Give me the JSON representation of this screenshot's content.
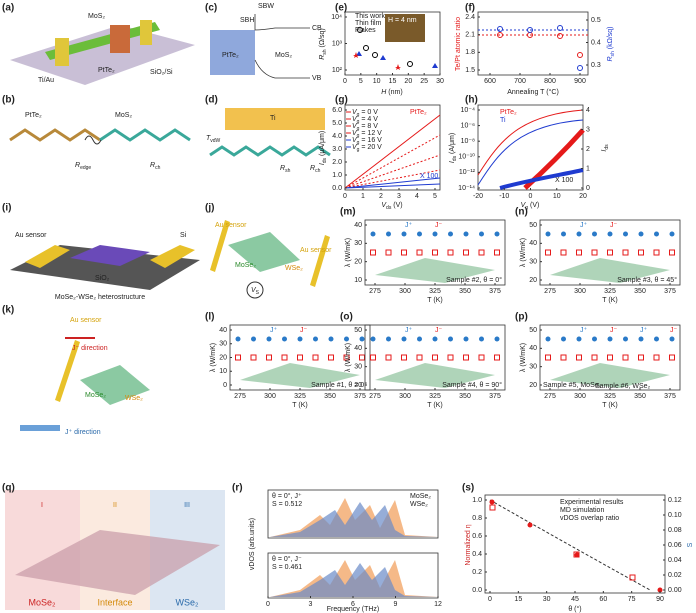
{
  "panels": {
    "a": {
      "label": "(a)",
      "mos2": "MoS₂",
      "tiau": "Ti/Au",
      "ptte2": "PtTe₂",
      "sub": "SiO₂/Si"
    },
    "b": {
      "label": "(b)",
      "ptte2": "PtTe₂",
      "mos2": "MoS₂",
      "redge": [
        "R",
        "edge"
      ],
      "rch": [
        "R",
        "ch"
      ]
    },
    "c": {
      "label": "(c)",
      "sbh": "SBH",
      "sbw": "SBW",
      "cb": "CB",
      "vb": "VB",
      "ptte2": "PtTe₂",
      "mos2": "MoS₂"
    },
    "d": {
      "label": "(d)",
      "ti": "Ti",
      "tvdw": [
        "T",
        "vdW"
      ],
      "rsh": [
        "R",
        "sh"
      ],
      "rch": [
        "R",
        "ch"
      ]
    },
    "e": {
      "label": "(e)",
      "ylabel": [
        "R",
        "sh",
        " (Ω/sq)"
      ],
      "xlabel": [
        "H",
        "",
        " (nm)"
      ],
      "yticks": [
        "10²",
        "10³",
        "10⁴"
      ],
      "xticks": [
        0,
        5,
        10,
        15,
        20,
        25,
        30
      ],
      "legend": [
        "This work",
        "Thin film",
        "Flakes"
      ],
      "inset": "H = 4 nm"
    },
    "f": {
      "label": "(f)",
      "ylabel": "Te/Pt atomic ratio",
      "y2label": [
        "R",
        "sh",
        " (kΩ/sq)"
      ],
      "xlabel": "Annealing T (°C)",
      "yticks": [
        1.5,
        1.8,
        2.1,
        2.4
      ],
      "y2ticks": [
        0.3,
        0.4,
        0.5
      ],
      "xticks": [
        600,
        700,
        800,
        900
      ]
    },
    "g": {
      "label": "(g)",
      "ylabel": [
        "I",
        "ds",
        " (μA/μm)"
      ],
      "xlabel": [
        "V",
        "ds",
        " (V)"
      ],
      "yticks": [
        "0.0",
        "1.0",
        "2.0",
        "3.0",
        "4.0",
        "5.0",
        "6.0"
      ],
      "xticks": [
        0,
        1,
        2,
        3,
        4,
        5
      ],
      "legend": [
        [
          "V",
          "g",
          " = 0 V"
        ],
        [
          "V",
          "g",
          " = 4 V"
        ],
        [
          "V",
          "g",
          " = 8 V"
        ],
        [
          "V",
          "g",
          " = 12 V"
        ],
        [
          "V",
          "g",
          " = 16 V"
        ],
        [
          "V",
          "g",
          " = 20 V"
        ]
      ],
      "ptte2": "PtTe₂",
      "x100": "X 100"
    },
    "h": {
      "label": "(h)",
      "ylabel": [
        "I",
        "ds",
        " (A/μm)"
      ],
      "y2label": [
        "I",
        "ds"
      ],
      "xlabel": [
        "V",
        "g",
        " (V)"
      ],
      "yticks": [
        "10⁻¹⁴",
        "10⁻¹²",
        "10⁻¹⁰",
        "10⁻⁸",
        "10⁻⁶",
        "10⁻⁴"
      ],
      "y2ticks": [
        0,
        1,
        2,
        3,
        4
      ],
      "xticks": [
        -20,
        -10,
        0,
        10,
        20
      ],
      "legend": [
        "PtTe₂",
        "Ti"
      ],
      "x100": "X 100"
    },
    "i": {
      "label": "(i)",
      "au": "Au sensor",
      "si": "Si",
      "sio2": "SiO₂",
      "hetero": "MoSe₂-WSe₂ heterostructure"
    },
    "j": {
      "label": "(j)",
      "au1": "Au sensor",
      "au2": "Au sensor",
      "mose2": "MoSe₂",
      "wse2": "WSe₂",
      "vs": [
        "V",
        "S"
      ]
    },
    "k": {
      "label": "(k)",
      "au": "Au sensor",
      "jminus": "J⁻ direction",
      "mose2": "MoSe₂",
      "wse2": "WSe₂",
      "jplus": "J⁺ direction"
    },
    "m": {
      "label": "(m)",
      "ylabel": "λ (W/mK)",
      "xlabel": "T (K)",
      "yticks": [
        10,
        20,
        30,
        40
      ],
      "xticks": [
        275,
        300,
        325,
        350,
        375
      ],
      "legend": [
        "J⁺",
        "J⁻"
      ],
      "sample": "Sample #2, θ = 0°"
    },
    "n": {
      "label": "(n)",
      "ylabel": "λ (W/mK)",
      "xlabel": "T (K)",
      "yticks": [
        20,
        30,
        40,
        50
      ],
      "xticks": [
        275,
        300,
        325,
        350,
        375
      ],
      "legend": [
        "J⁺",
        "J⁻"
      ],
      "sample": "Sample #3, θ = 45°"
    },
    "l": {
      "label": "(l)",
      "ylabel": "λ (W/mK)",
      "xlabel": "T (K)",
      "yticks": [
        0,
        10,
        20,
        30,
        40
      ],
      "xticks": [
        275,
        300,
        325,
        350,
        375
      ],
      "legend": [
        "J⁺",
        "J⁻"
      ],
      "sample": "Sample #1, θ = 0°"
    },
    "o": {
      "label": "(o)",
      "ylabel": "λ (W/mK)",
      "xlabel": "T (K)",
      "yticks": [
        20,
        30,
        40,
        50
      ],
      "xticks": [
        275,
        300,
        325,
        350,
        375
      ],
      "legend": [
        "J⁺",
        "J⁻"
      ],
      "sample": "Sample #4, θ = 90°"
    },
    "p": {
      "label": "(p)",
      "ylabel": "λ (W/mK)",
      "xlabel": "T (K)",
      "yticks": [
        20,
        30,
        40,
        50
      ],
      "xticks": [
        275,
        300,
        325,
        350,
        375
      ],
      "legend": [
        "J⁺",
        "J⁻",
        "J⁺",
        "J⁻"
      ],
      "sample": "Sample #5, MoSe₂",
      "sample2": "Sample #6, WSe₂"
    },
    "q": {
      "label": "(q)",
      "r1": "I",
      "r2": "II",
      "r3": "III",
      "mose2": "MoSe₂",
      "inter": "Interface",
      "wse2": "WSe₂"
    },
    "r": {
      "label": "(r)",
      "ylabel": "vDOS (arb.units)",
      "xlabel": "Frequency (THz)",
      "xticks": [
        0,
        3,
        6,
        9,
        12
      ],
      "t1": "θ = 0°, J⁺",
      "s1": "S = 0.512",
      "t2": "θ = 0°, J⁻",
      "s2": "S = 0.461",
      "legend": [
        "MoSe₂",
        "WSe₂"
      ]
    },
    "s": {
      "label": "(s)",
      "ylabel": "Normalized η",
      "y2label": "S",
      "xlabel": "θ (°)",
      "yticks": [
        "0.0",
        "0.2",
        "0.4",
        "0.6",
        "0.8",
        "1.0"
      ],
      "y2ticks": [
        "0.00",
        "0.02",
        "0.04",
        "0.06",
        "0.08",
        "0.10",
        "0.12"
      ],
      "xticks": [
        0,
        15,
        30,
        45,
        60,
        75,
        90
      ],
      "legend": [
        "Experimental results",
        "MD simulation",
        "vDOS overlap ratio"
      ]
    }
  }
}
